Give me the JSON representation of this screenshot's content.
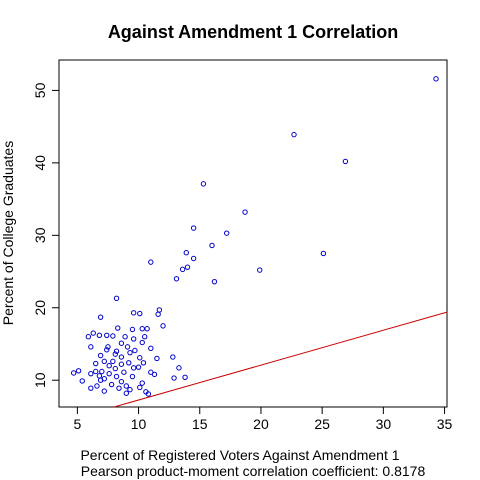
{
  "chart_data": {
    "type": "scatter",
    "title": "Against Amendment 1 Correlation",
    "xlabel": "Percent of Registered Voters Against Amendment 1",
    "ylabel": "Percent of College Graduates",
    "subtitle": "Pearson product-moment correlation coefficient: 0.8178",
    "xlim": [
      3.5,
      35.2
    ],
    "ylim": [
      6.3,
      54.2
    ],
    "x_ticks": [
      5,
      10,
      15,
      20,
      25,
      30,
      35
    ],
    "y_ticks": [
      10,
      20,
      30,
      40,
      50
    ],
    "grid": false,
    "legend": "none",
    "point_color": "#0000cc",
    "line_color": "#cc0000",
    "fit_line": {
      "x1": 8.0,
      "y1": 6.3,
      "x2": 35.2,
      "y2": 19.4
    },
    "points": [
      [
        34.3,
        51.6
      ],
      [
        22.7,
        43.9
      ],
      [
        26.9,
        40.2
      ],
      [
        15.3,
        37.1
      ],
      [
        18.7,
        33.2
      ],
      [
        14.5,
        31.0
      ],
      [
        17.2,
        30.3
      ],
      [
        16.0,
        28.6
      ],
      [
        13.9,
        27.6
      ],
      [
        25.1,
        27.5
      ],
      [
        14.5,
        26.8
      ],
      [
        11.0,
        26.3
      ],
      [
        14.0,
        25.6
      ],
      [
        13.6,
        25.3
      ],
      [
        19.9,
        25.2
      ],
      [
        13.1,
        24.0
      ],
      [
        16.2,
        23.6
      ],
      [
        8.2,
        21.3
      ],
      [
        11.7,
        19.7
      ],
      [
        11.6,
        19.1
      ],
      [
        9.6,
        19.3
      ],
      [
        10.1,
        19.2
      ],
      [
        6.9,
        18.7
      ],
      [
        12.0,
        17.5
      ],
      [
        8.3,
        17.2
      ],
      [
        9.5,
        17.0
      ],
      [
        10.3,
        17.1
      ],
      [
        10.7,
        17.1
      ],
      [
        6.3,
        16.5
      ],
      [
        6.8,
        16.2
      ],
      [
        7.4,
        16.2
      ],
      [
        7.9,
        16.1
      ],
      [
        8.9,
        16.0
      ],
      [
        10.5,
        16.0
      ],
      [
        5.9,
        16.0
      ],
      [
        9.6,
        15.7
      ],
      [
        8.6,
        15.1
      ],
      [
        10.3,
        15.2
      ],
      [
        7.5,
        14.6
      ],
      [
        9.1,
        14.6
      ],
      [
        6.1,
        14.6
      ],
      [
        11.0,
        14.4
      ],
      [
        7.4,
        14.2
      ],
      [
        8.2,
        14.0
      ],
      [
        9.7,
        14.1
      ],
      [
        8.6,
        13.2
      ],
      [
        8.1,
        13.6
      ],
      [
        9.3,
        13.8
      ],
      [
        6.9,
        13.4
      ],
      [
        11.5,
        13.0
      ],
      [
        12.8,
        13.2
      ],
      [
        10.1,
        13.1
      ],
      [
        7.2,
        12.6
      ],
      [
        7.9,
        12.6
      ],
      [
        9.2,
        12.4
      ],
      [
        8.6,
        12.2
      ],
      [
        10.4,
        12.4
      ],
      [
        6.5,
        12.3
      ],
      [
        7.6,
        12.0
      ],
      [
        10.0,
        11.8
      ],
      [
        8.1,
        11.6
      ],
      [
        9.6,
        11.7
      ],
      [
        13.3,
        11.7
      ],
      [
        5.1,
        11.3
      ],
      [
        6.5,
        11.2
      ],
      [
        7.0,
        11.2
      ],
      [
        8.8,
        11.1
      ],
      [
        11.0,
        11.1
      ],
      [
        4.7,
        11.0
      ],
      [
        6.1,
        10.9
      ],
      [
        7.6,
        10.9
      ],
      [
        11.3,
        10.8
      ],
      [
        6.8,
        10.6
      ],
      [
        8.2,
        10.5
      ],
      [
        9.5,
        10.5
      ],
      [
        13.8,
        10.4
      ],
      [
        12.9,
        10.3
      ],
      [
        7.2,
        10.2
      ],
      [
        6.9,
        10.0
      ],
      [
        5.4,
        9.9
      ],
      [
        8.6,
        9.8
      ],
      [
        10.3,
        9.6
      ],
      [
        7.8,
        9.4
      ],
      [
        9.0,
        9.2
      ],
      [
        6.6,
        9.2
      ],
      [
        10.1,
        9.0
      ],
      [
        8.4,
        8.9
      ],
      [
        6.1,
        8.9
      ],
      [
        9.3,
        8.7
      ],
      [
        7.2,
        8.5
      ],
      [
        10.6,
        8.4
      ],
      [
        9.0,
        8.2
      ],
      [
        10.8,
        8.1
      ]
    ]
  }
}
